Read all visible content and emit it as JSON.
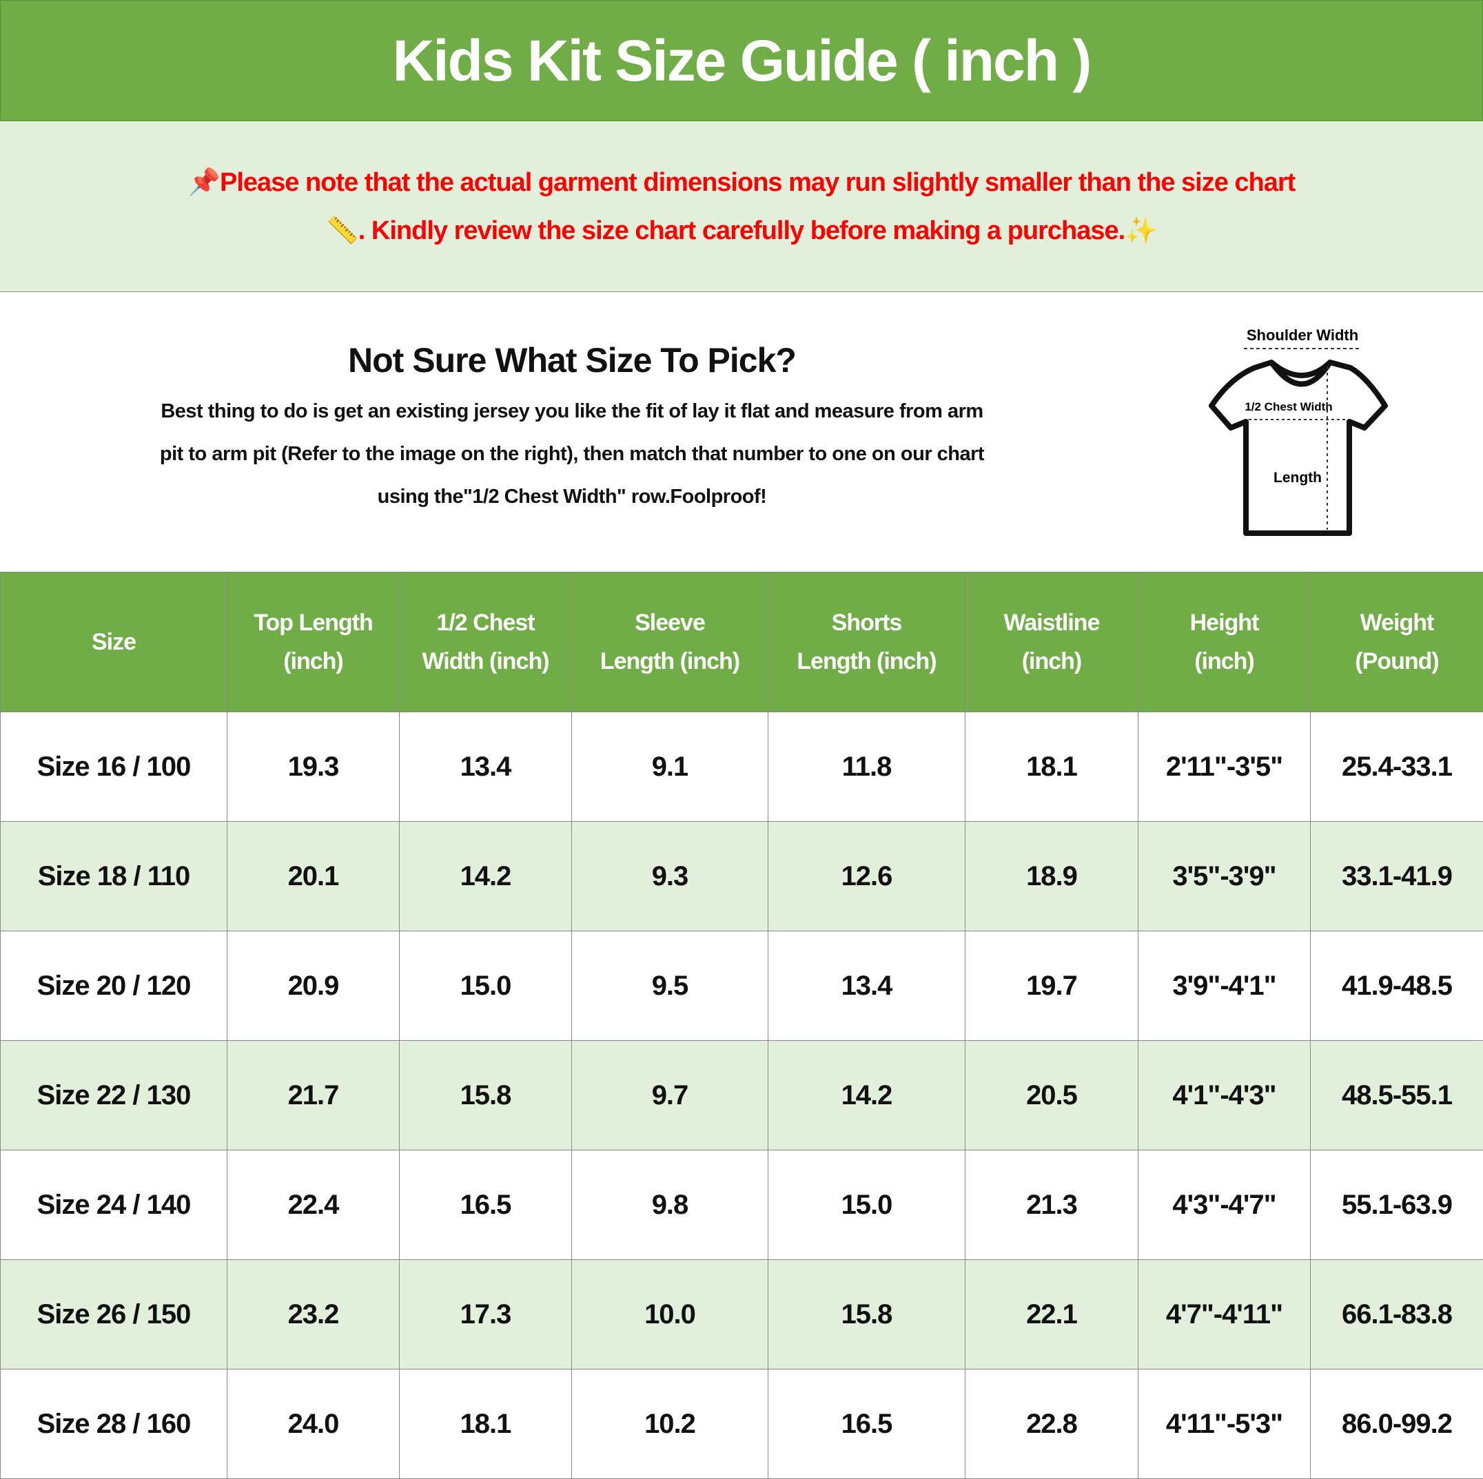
{
  "title": "Kids Kit Size Guide ( inch )",
  "note": {
    "line1": "Please note that the actual garment dimensions may run slightly smaller than the size chart",
    "line2": ". Kindly review the size chart carefully before making a purchase.",
    "icons": [
      "pushpin-icon",
      "ruler-icon",
      "sparkles-icon"
    ],
    "color": "#ff0000"
  },
  "info": {
    "heading": "Not Sure What Size To Pick?",
    "lines": [
      "Best thing to do is get an existing jersey you like the fit of lay it flat and measure from arm",
      "pit to arm pit (Refer to the image on the right), then match that number to one on our chart",
      "using the\"1/2 Chest Width\" row.Foolproof!"
    ],
    "diagram": {
      "shoulder": "Shoulder Width",
      "chest": "1/2 Chest Width",
      "length": "Length"
    }
  },
  "colors": {
    "header": "#70AD47",
    "alt_row": "#E2EFDA"
  },
  "table": {
    "headers": [
      [
        "Size"
      ],
      [
        "Top Length",
        "(inch)"
      ],
      [
        "1/2 Chest",
        "Width (inch)"
      ],
      [
        "Sleeve",
        "Length (inch)"
      ],
      [
        "Shorts",
        "Length (inch)"
      ],
      [
        "Waistline",
        "(inch)"
      ],
      [
        "Height",
        "(inch)"
      ],
      [
        "Weight",
        "(Pound)"
      ]
    ],
    "rows": [
      [
        "Size 16 / 100",
        "19.3",
        "13.4",
        "9.1",
        "11.8",
        "18.1",
        "2'11\"-3'5\"",
        "25.4-33.1"
      ],
      [
        "Size 18 / 110",
        "20.1",
        "14.2",
        "9.3",
        "12.6",
        "18.9",
        "3'5\"-3'9\"",
        "33.1-41.9"
      ],
      [
        "Size 20 / 120",
        "20.9",
        "15.0",
        "9.5",
        "13.4",
        "19.7",
        "3'9\"-4'1\"",
        "41.9-48.5"
      ],
      [
        "Size 22 / 130",
        "21.7",
        "15.8",
        "9.7",
        "14.2",
        "20.5",
        "4'1\"-4'3\"",
        "48.5-55.1"
      ],
      [
        "Size 24 / 140",
        "22.4",
        "16.5",
        "9.8",
        "15.0",
        "21.3",
        "4'3\"-4'7\"",
        "55.1-63.9"
      ],
      [
        "Size 26 / 150",
        "23.2",
        "17.3",
        "10.0",
        "15.8",
        "22.1",
        "4'7\"-4'11\"",
        "66.1-83.8"
      ],
      [
        "Size 28 / 160",
        "24.0",
        "18.1",
        "10.2",
        "16.5",
        "22.8",
        "4'11\"-5'3\"",
        "86.0-99.2"
      ]
    ]
  }
}
